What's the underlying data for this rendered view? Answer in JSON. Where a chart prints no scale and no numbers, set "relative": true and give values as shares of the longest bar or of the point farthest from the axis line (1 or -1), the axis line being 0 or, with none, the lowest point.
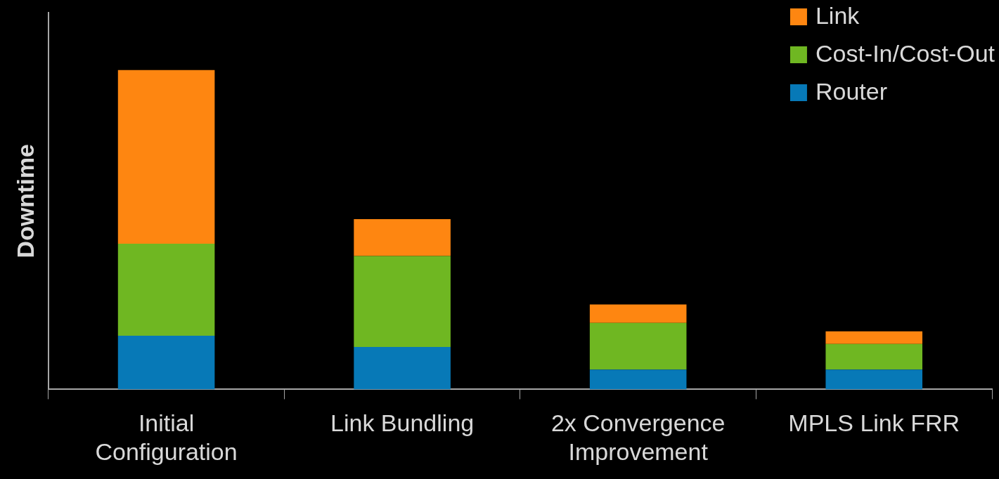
{
  "chart_data": {
    "type": "bar",
    "stacked": true,
    "relative": true,
    "ylabel": "Downtime",
    "categories": [
      "Initial Configuration",
      "Link Bundling",
      "2x Convergence Improvement",
      "MPLS Link FRR"
    ],
    "legend": "top right",
    "series": [
      {
        "name": "Router",
        "color": "#0779b7",
        "values": [
          0.168,
          0.133,
          0.062,
          0.062
        ]
      },
      {
        "name": "Cost-In/Cost-Out",
        "color": "#6fb722",
        "values": [
          0.288,
          0.285,
          0.146,
          0.08
        ]
      },
      {
        "name": "Link",
        "color": "#fe8611",
        "values": [
          0.544,
          0.115,
          0.058,
          0.04
        ]
      }
    ]
  }
}
